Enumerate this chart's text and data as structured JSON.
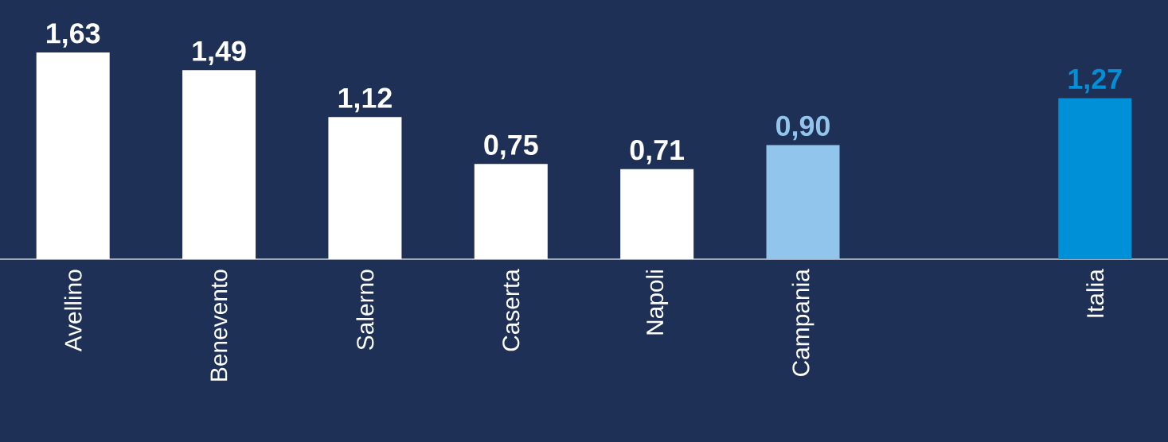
{
  "chart_data": {
    "type": "bar",
    "categories": [
      "Avellino",
      "Benevento",
      "Salerno",
      "Caserta",
      "Napoli",
      "Campania",
      null,
      "Italia"
    ],
    "values": [
      1.63,
      1.49,
      1.12,
      0.75,
      0.71,
      0.9,
      null,
      1.27
    ],
    "value_labels": [
      "1,63",
      "1,49",
      "1,12",
      "0,75",
      "0,71",
      "0,90",
      null,
      "1,27"
    ],
    "colors": [
      "#ffffff",
      "#ffffff",
      "#ffffff",
      "#ffffff",
      "#ffffff",
      "#92c5eb",
      null,
      "#0090d8"
    ]
  }
}
